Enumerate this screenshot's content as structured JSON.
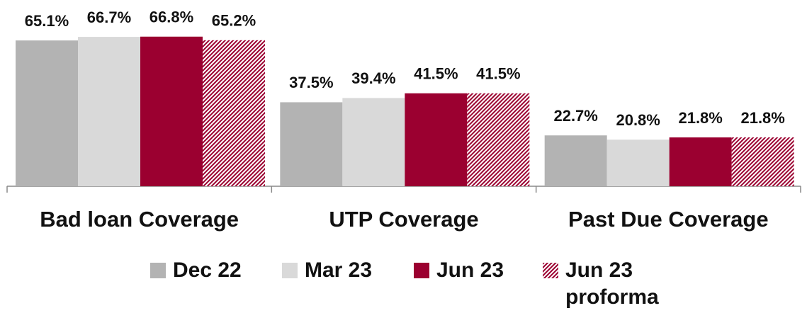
{
  "chart_data": {
    "type": "bar",
    "categories": [
      "Bad loan Coverage",
      "UTP Coverage",
      "Past Due Coverage"
    ],
    "series": [
      {
        "name": "Dec 22",
        "color": "#b3b3b3",
        "values": [
          65.1,
          37.5,
          22.7
        ],
        "value_labels": [
          "65.1%",
          "37.5%",
          "22.7%"
        ]
      },
      {
        "name": "Mar 23",
        "color": "#d9d9d9",
        "values": [
          66.7,
          39.4,
          20.8
        ],
        "value_labels": [
          "66.7%",
          "39.4%",
          "20.8%"
        ]
      },
      {
        "name": "Jun 23",
        "color": "#9b0030",
        "values": [
          66.8,
          41.5,
          21.8
        ],
        "value_labels": [
          "66.8%",
          "41.5%",
          "21.8%"
        ]
      },
      {
        "name": "Jun 23 proforma",
        "color": "#9b0030",
        "hatch": true,
        "values": [
          65.2,
          41.5,
          21.8
        ],
        "value_labels": [
          "65.2%",
          "41.5%",
          "21.8%"
        ]
      }
    ],
    "ylim": [
      0,
      80
    ]
  }
}
